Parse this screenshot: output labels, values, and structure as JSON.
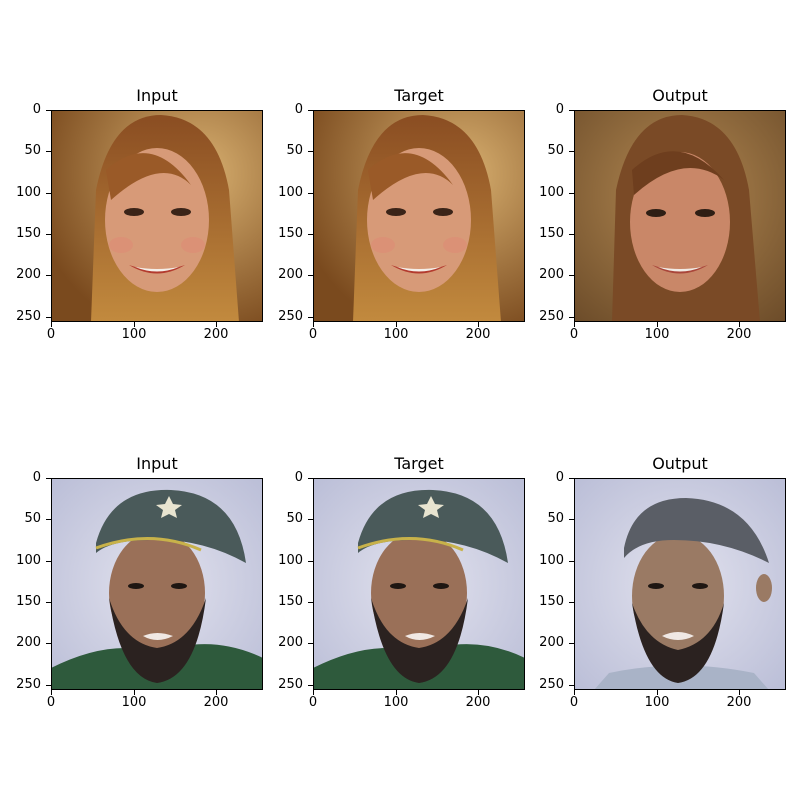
{
  "figure": {
    "rows": [
      {
        "panels": [
          {
            "title": "Input",
            "image": "woman-with-long-auburn-hair-smiling"
          },
          {
            "title": "Target",
            "image": "woman-with-long-auburn-hair-smiling"
          },
          {
            "title": "Output",
            "image": "woman-with-long-auburn-hair-smiling-reconstructed"
          }
        ]
      },
      {
        "panels": [
          {
            "title": "Input",
            "image": "bearded-man-in-green-cap"
          },
          {
            "title": "Target",
            "image": "bearded-man-in-green-cap"
          },
          {
            "title": "Output",
            "image": "bearded-man-reconstructed-no-jersey"
          }
        ]
      }
    ],
    "x_ticks": [
      "0",
      "100",
      "200"
    ],
    "y_ticks": [
      "0",
      "50",
      "100",
      "150",
      "200",
      "250"
    ],
    "colors": {
      "woman_bg": "#c2914d",
      "woman_hair": "#8c5225",
      "woman_skin": "#d59470",
      "man_bg": "#c9cbe0",
      "man_cap": "#4a5a5a",
      "man_skin": "#9a7058",
      "man_beard": "#2b2220",
      "man_jersey": "#2e5a3c"
    }
  }
}
